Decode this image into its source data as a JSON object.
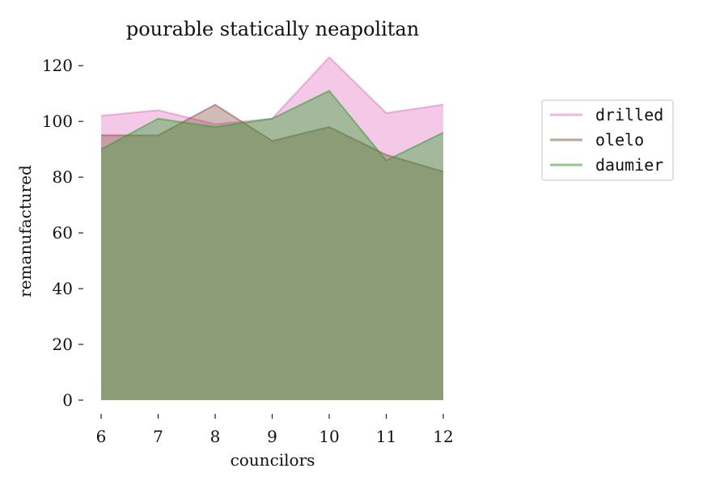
{
  "chart_data": {
    "type": "area",
    "title": "pourable statically neapolitan",
    "xlabel": "councilors",
    "ylabel": "remanufactured",
    "x": [
      6,
      7,
      8,
      9,
      10,
      11,
      12
    ],
    "xlim": [
      6,
      12
    ],
    "ylim": [
      0,
      125
    ],
    "yticks": [
      0,
      20,
      40,
      60,
      80,
      100,
      120
    ],
    "grid": false,
    "legend_position": "right",
    "series": [
      {
        "name": "drilled",
        "values": [
          102,
          104,
          99,
          101,
          123,
          103,
          106
        ],
        "color": "#e377c2"
      },
      {
        "name": "olelo",
        "values": [
          95,
          95,
          106,
          93,
          98,
          88,
          82
        ],
        "color": "#8c564b"
      },
      {
        "name": "daumier",
        "values": [
          90,
          101,
          98,
          101,
          111,
          86,
          96
        ],
        "color": "#2ca02c"
      }
    ]
  }
}
